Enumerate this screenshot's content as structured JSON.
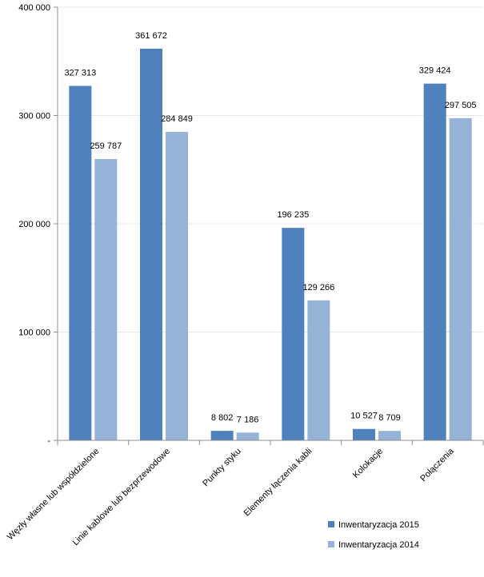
{
  "chart_data": {
    "type": "bar",
    "categories": [
      "Węzły własne lub współdzielone",
      "Linie kablowe lub bezprzewodowe",
      "Punkty styku",
      "Elementy łączenia kabli",
      "Kolokacje",
      "Połączenia"
    ],
    "series": [
      {
        "name": "Inwentaryzacja 2015",
        "values": [
          327313,
          361672,
          8802,
          196235,
          10527,
          329424
        ],
        "labels": [
          "327 313",
          "361 672",
          "8 802",
          "196 235",
          "10 527",
          "329 424"
        ],
        "color": "#4f81bd"
      },
      {
        "name": "Inwentaryzacja 2014",
        "values": [
          259787,
          284849,
          7186,
          129266,
          8709,
          297505
        ],
        "labels": [
          "259 787",
          "284 849",
          "7 186",
          "129 266",
          "8 709",
          "297 505"
        ],
        "color": "#95b3d7"
      }
    ],
    "ylim": [
      0,
      400000
    ],
    "yticks": [
      0,
      100000,
      200000,
      300000,
      400000
    ],
    "ytick_labels": [
      "-",
      "100 000",
      "200 000",
      "300 000",
      "400 000"
    ],
    "grid": true,
    "legend_position": "bottom-right"
  }
}
